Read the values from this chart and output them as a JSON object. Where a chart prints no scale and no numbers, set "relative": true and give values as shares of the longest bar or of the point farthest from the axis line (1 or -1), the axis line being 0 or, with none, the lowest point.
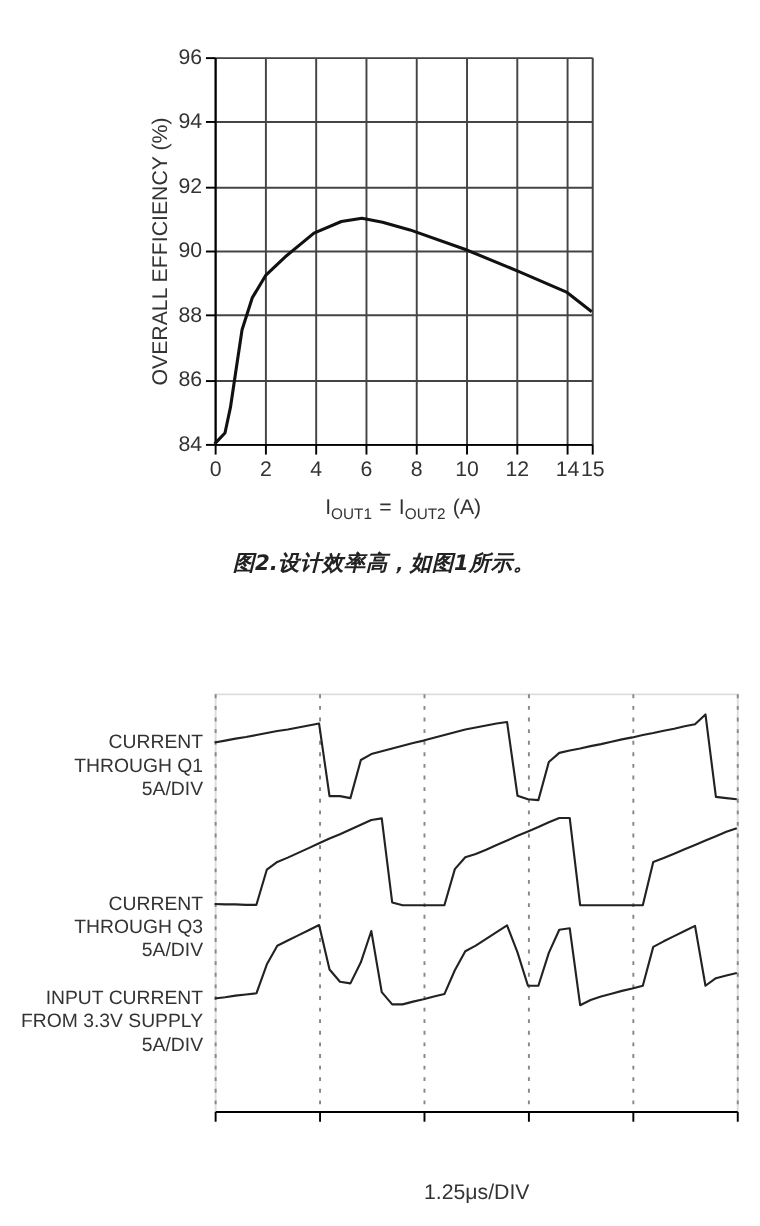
{
  "chart_data": [
    {
      "type": "line",
      "xlabel": "I$_{OUT1}$ = I$_{OUT2}$ (A)",
      "ylabel": "OVERALL EFFICIENCY (%)",
      "annotations": [
        "图2.设计效率高，如图1所示。"
      ],
      "xlim": [
        0,
        15
      ],
      "ylim": [
        84,
        96
      ],
      "xticks": [
        0,
        2,
        4,
        6,
        8,
        10,
        12,
        14,
        15
      ],
      "yticks": [
        84,
        86,
        88,
        90,
        92,
        94,
        96
      ],
      "grid": true,
      "series": [
        {
          "color": "#111111",
          "x": [
            0,
            0.41,
            0.63,
            0.82,
            1.09,
            1.5,
            2.04,
            2.86,
            3.95,
            5.04,
            5.86,
            6.68,
            7.77,
            9.95,
            12.13,
            14.02,
            15
          ],
          "values": [
            84.0,
            84.34,
            85.14,
            86.14,
            87.54,
            88.54,
            89.24,
            89.84,
            90.54,
            90.9,
            91.0,
            90.88,
            90.64,
            90.04,
            89.34,
            88.7,
            88.1
          ]
        }
      ]
    },
    {
      "type": "line",
      "relative": true,
      "xlabel": "1.25μs/DIV",
      "grid": "x",
      "categories": [
        null,
        null,
        null,
        null,
        null,
        null,
        null,
        null,
        null,
        null,
        null,
        null,
        null,
        null,
        null,
        null,
        null,
        null,
        null,
        null,
        null,
        null,
        null,
        null,
        null,
        null,
        null,
        null,
        null,
        null,
        null,
        null,
        null,
        null,
        null,
        null,
        null,
        null,
        null,
        null,
        null,
        null,
        null,
        null,
        null,
        null,
        null,
        null,
        null,
        null,
        null
      ],
      "series": [
        {
          "name": "CURRENT\nTHROUGH Q1\n5A/DIV",
          "color": "#222222",
          "values": [
            0.929,
            0.934,
            0.939,
            0.943,
            0.948,
            0.953,
            0.958,
            0.962,
            0.967,
            0.972,
            0.977,
            0.794,
            0.794,
            0.789,
            0.885,
            0.9,
            0.907,
            0.914,
            0.921,
            0.928,
            0.934,
            0.941,
            0.948,
            0.955,
            0.962,
            0.967,
            0.972,
            0.977,
            0.981,
            0.795,
            0.786,
            0.784,
            0.88,
            0.903,
            0.909,
            0.914,
            0.92,
            0.925,
            0.931,
            0.937,
            0.942,
            0.948,
            0.953,
            0.959,
            0.964,
            0.97,
            0.975,
            1.0,
            0.792,
            0.789,
            0.786
          ]
        },
        {
          "name": "CURRENT\nTHROUGH Q3\n5A/DIV",
          "color": "#222222",
          "values": [
            0.522,
            0.521,
            0.521,
            0.52,
            0.52,
            0.609,
            0.628,
            0.639,
            0.651,
            0.663,
            0.675,
            0.687,
            0.698,
            0.71,
            0.722,
            0.734,
            0.738,
            0.526,
            0.519,
            0.519,
            0.519,
            0.519,
            0.519,
            0.61,
            0.64,
            0.648,
            0.659,
            0.671,
            0.682,
            0.694,
            0.705,
            0.716,
            0.728,
            0.739,
            0.739,
            0.519,
            0.519,
            0.519,
            0.519,
            0.519,
            0.519,
            0.519,
            0.628,
            0.638,
            0.649,
            0.66,
            0.671,
            0.682,
            0.693,
            0.704,
            0.713
          ]
        },
        {
          "name": "INPUT CURRENT\nFROM 3.3V SUPPLY\n5A/DIV",
          "color": "#222222",
          "values": [
            0.284,
            0.287,
            0.291,
            0.294,
            0.297,
            0.37,
            0.417,
            0.43,
            0.443,
            0.456,
            0.469,
            0.357,
            0.326,
            0.322,
            0.375,
            0.454,
            0.3,
            0.269,
            0.269,
            0.276,
            0.282,
            0.289,
            0.295,
            0.355,
            0.403,
            0.417,
            0.434,
            0.451,
            0.468,
            0.4,
            0.316,
            0.316,
            0.399,
            0.457,
            0.461,
            0.267,
            0.28,
            0.289,
            0.296,
            0.303,
            0.309,
            0.316,
            0.414,
            0.428,
            0.441,
            0.454,
            0.467,
            0.316,
            0.335,
            0.342,
            0.348
          ]
        }
      ]
    }
  ]
}
